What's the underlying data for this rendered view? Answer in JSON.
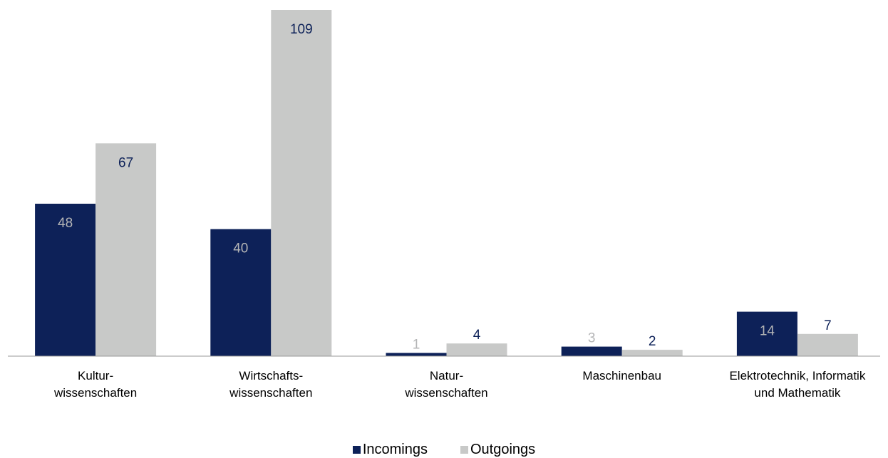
{
  "chart_data": {
    "type": "bar",
    "categories": [
      [
        "Kultur-",
        "wissenschaften"
      ],
      [
        "Wirtschafts-",
        "wissenschaften"
      ],
      [
        "Natur-",
        "wissenschaften"
      ],
      [
        "Maschinenbau"
      ],
      [
        "Elektrotechnik, Informatik",
        "und Mathematik"
      ]
    ],
    "series": [
      {
        "name": "Incomings",
        "color": "#0d2158",
        "values": [
          48,
          40,
          1,
          3,
          14
        ],
        "label_colors": [
          "#b4b5b6",
          "#b4b5b6",
          "#b4b5b6",
          "#b4b5b6",
          "#b4b5b6"
        ]
      },
      {
        "name": "Outgoings",
        "color": "#c8c9c8",
        "values": [
          67,
          109,
          4,
          2,
          7
        ],
        "label_colors": [
          "#0d2158",
          "#0d2158",
          "#0d2158",
          "#0d2158",
          "#0d2158"
        ]
      }
    ],
    "ylim": [
      0,
      109
    ],
    "grid": false,
    "legend_position": "bottom-center"
  }
}
